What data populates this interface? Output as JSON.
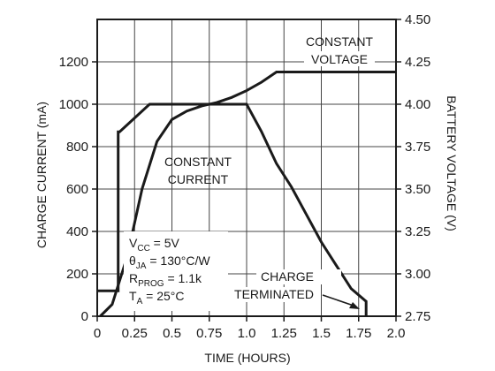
{
  "chart_data": {
    "type": "line",
    "xlabel": "TIME (HOURS)",
    "ylabel_left": "CHARGE CURRENT (mA)",
    "ylabel_right": "BATTERY VOLTAGE (V)",
    "xlim": [
      0,
      2.0
    ],
    "ylim_left": [
      0,
      1400
    ],
    "ylim_right": [
      2.75,
      4.5
    ],
    "grid": true,
    "x_ticks": [
      "0",
      "0.25",
      "0.5",
      "0.75",
      "1.0",
      "1.25",
      "1.5",
      "1.75",
      "2.0"
    ],
    "y_left_ticks": [
      "0",
      "200",
      "400",
      "600",
      "800",
      "1000",
      "1200"
    ],
    "y_right_ticks": [
      "2.75",
      "3.00",
      "3.25",
      "3.50",
      "3.75",
      "4.00",
      "4.25",
      "4.50"
    ],
    "series": [
      {
        "axis": "left",
        "x": [
          0,
          0.14,
          0.14,
          0.15,
          0.35,
          1.0,
          1.1,
          1.2,
          1.3,
          1.4,
          1.5,
          1.6,
          1.7,
          1.8,
          1.8
        ],
        "y": [
          120,
          120,
          870,
          870,
          1000,
          1000,
          870,
          720,
          610,
          480,
          350,
          240,
          130,
          70,
          0
        ]
      },
      {
        "axis": "right",
        "x": [
          0.02,
          0.1,
          0.2,
          0.3,
          0.4,
          0.5,
          0.6,
          0.7,
          0.8,
          0.9,
          1.0,
          1.1,
          1.2,
          2.0
        ],
        "y": [
          2.75,
          2.82,
          3.1,
          3.5,
          3.78,
          3.91,
          3.96,
          3.99,
          4.01,
          4.04,
          4.08,
          4.13,
          4.19,
          4.19
        ]
      }
    ],
    "annotations": {
      "constant_voltage": [
        "CONSTANT",
        "VOLTAGE"
      ],
      "constant_current": [
        "CONSTANT",
        "CURRENT"
      ],
      "charge_terminated": [
        "CHARGE",
        "TERMINATED"
      ]
    },
    "conditions": [
      {
        "main": "V",
        "sub": "CC",
        "rest": " = 5V"
      },
      {
        "main": "θ",
        "sub": "JA",
        "rest": " = 130°C/W"
      },
      {
        "main": "R",
        "sub": "PROG",
        "rest": " = 1.1k"
      },
      {
        "main": "T",
        "sub": "A",
        "rest": " = 25°C"
      }
    ]
  }
}
